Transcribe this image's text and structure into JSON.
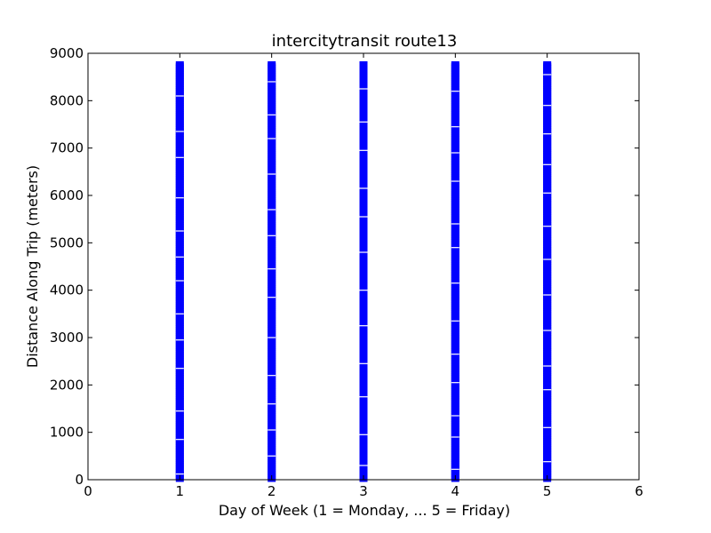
{
  "chart_data": {
    "type": "scatter",
    "title": "intercitytransit route13",
    "xlabel": "Day of Week (1 = Monday, ... 5 = Friday)",
    "ylabel": "Distance Along Trip (meters)",
    "xlim": [
      0,
      6
    ],
    "ylim": [
      0,
      9000
    ],
    "xticks": [
      0,
      1,
      2,
      3,
      4,
      5,
      6
    ],
    "yticks": [
      0,
      1000,
      2000,
      3000,
      4000,
      5000,
      6000,
      7000,
      8000,
      9000
    ],
    "xtick_labels": [
      "0",
      "1",
      "2",
      "3",
      "4",
      "5",
      "6"
    ],
    "ytick_labels": [
      "0",
      "1000",
      "2000",
      "3000",
      "4000",
      "5000",
      "6000",
      "7000",
      "8000",
      "9000"
    ],
    "grid": false,
    "legend": "none",
    "marker": "square",
    "marker_color": "#0000ff",
    "series": [
      {
        "x": 1,
        "y_range": [
          0,
          8800
        ],
        "gaps": [
          120,
          850,
          1450,
          2350,
          2950,
          3500,
          4200,
          4700,
          5250,
          5950,
          6800,
          7350,
          8100
        ]
      },
      {
        "x": 2,
        "y_range": [
          0,
          8800
        ],
        "gaps": [
          500,
          1050,
          1600,
          2200,
          3000,
          3850,
          4450,
          5150,
          5700,
          6450,
          7200,
          7700,
          8400
        ]
      },
      {
        "x": 3,
        "y_range": [
          0,
          8800
        ],
        "gaps": [
          300,
          950,
          1750,
          2450,
          3250,
          4000,
          4800,
          5550,
          6150,
          6950,
          7550,
          8250
        ]
      },
      {
        "x": 4,
        "y_range": [
          0,
          8800
        ],
        "gaps": [
          220,
          900,
          1350,
          2050,
          2650,
          3350,
          4150,
          4900,
          5400,
          6300,
          6900,
          7450,
          8200
        ]
      },
      {
        "x": 5,
        "y_range": [
          0,
          8800
        ],
        "gaps": [
          380,
          1100,
          1900,
          2400,
          3150,
          3900,
          4650,
          5350,
          6050,
          6650,
          7300,
          7900,
          8550
        ]
      }
    ]
  }
}
